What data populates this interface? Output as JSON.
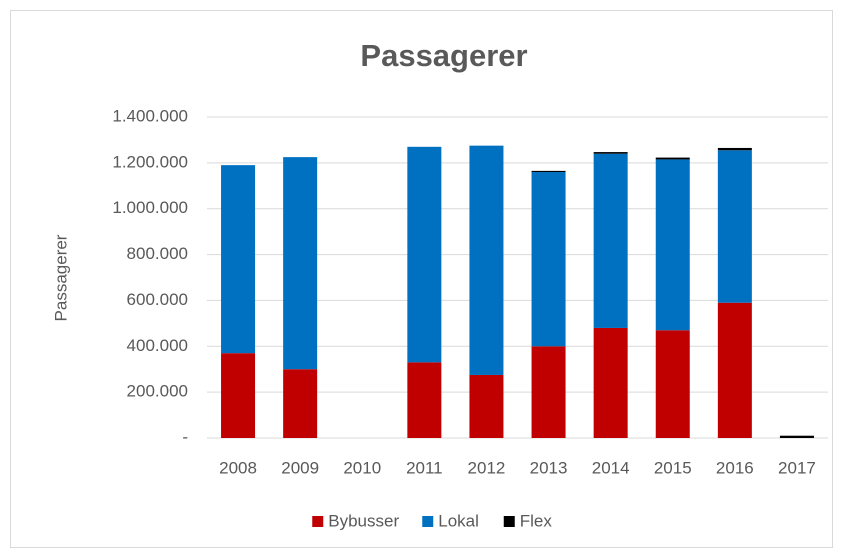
{
  "chart_data": {
    "type": "stacked_bar",
    "title": "Passagerer",
    "y_label": "Passagerer",
    "categories": [
      "2008",
      "2009",
      "2010",
      "2011",
      "2012",
      "2013",
      "2014",
      "2015",
      "2016",
      "2017"
    ],
    "series": [
      {
        "name": "Bybusser",
        "color": "#c00000",
        "values": [
          370000,
          300000,
          null,
          330000,
          275000,
          400000,
          480000,
          470000,
          590000,
          null
        ]
      },
      {
        "name": "Lokal",
        "color": "#0070c0",
        "values": [
          820000,
          925000,
          null,
          940000,
          1000000,
          760000,
          760000,
          745000,
          665000,
          null
        ]
      },
      {
        "name": "Flex",
        "color": "#000000",
        "values": [
          null,
          null,
          null,
          null,
          null,
          5000,
          7000,
          8000,
          10000,
          10000
        ]
      }
    ],
    "ylim": [
      0,
      1400000
    ],
    "yticks": [
      {
        "value": 0,
        "label": "-"
      },
      {
        "value": 200000,
        "label": "200.000"
      },
      {
        "value": 400000,
        "label": "400.000"
      },
      {
        "value": 600000,
        "label": "600.000"
      },
      {
        "value": 800000,
        "label": "800.000"
      },
      {
        "value": 1000000,
        "label": "1.000.000"
      },
      {
        "value": 1200000,
        "label": "1.200.000"
      },
      {
        "value": 1400000,
        "label": "1.400.000"
      }
    ],
    "grid": true,
    "legend": "bottom"
  }
}
